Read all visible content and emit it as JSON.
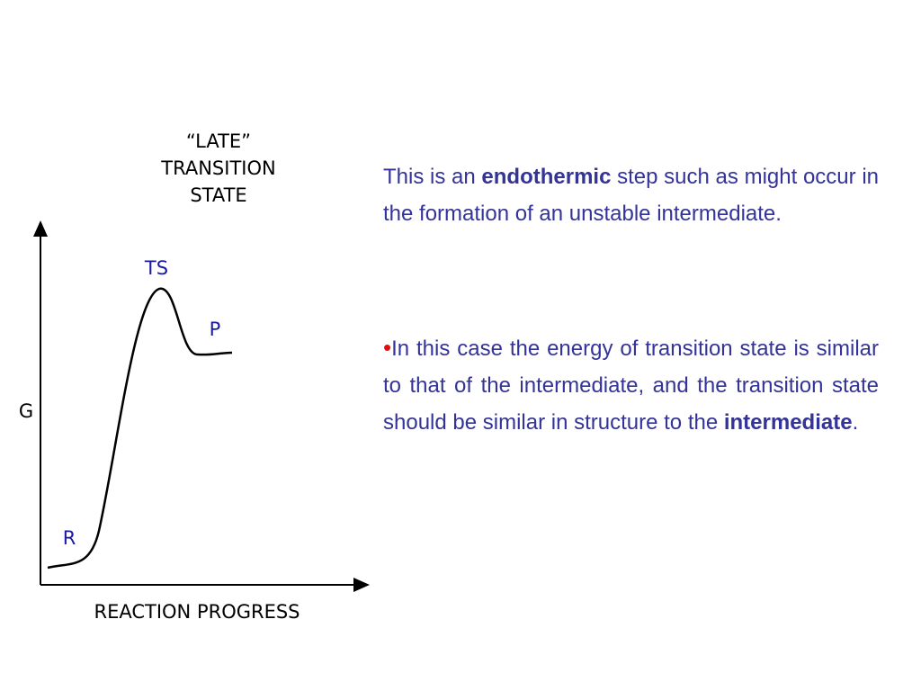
{
  "diagram": {
    "title_lines": [
      "“LATE”",
      "TRANSITION",
      "STATE"
    ],
    "labels": {
      "ts": "TS",
      "p": "P",
      "r": "R"
    },
    "y_axis_label": "G",
    "x_axis_label": "REACTION PROGRESS"
  },
  "text": {
    "paragraphs": [
      {
        "segments": [
          "This is an ",
          "endothermic",
          " step such as might occur in the formation of an unstable intermediate."
        ]
      },
      {
        "bullet": "•",
        "segments": [
          "In this case the energy of transition state is similar to that of the intermediate, and the transition state should be similar in structure to the ",
          "intermediate",
          "."
        ]
      }
    ]
  }
}
